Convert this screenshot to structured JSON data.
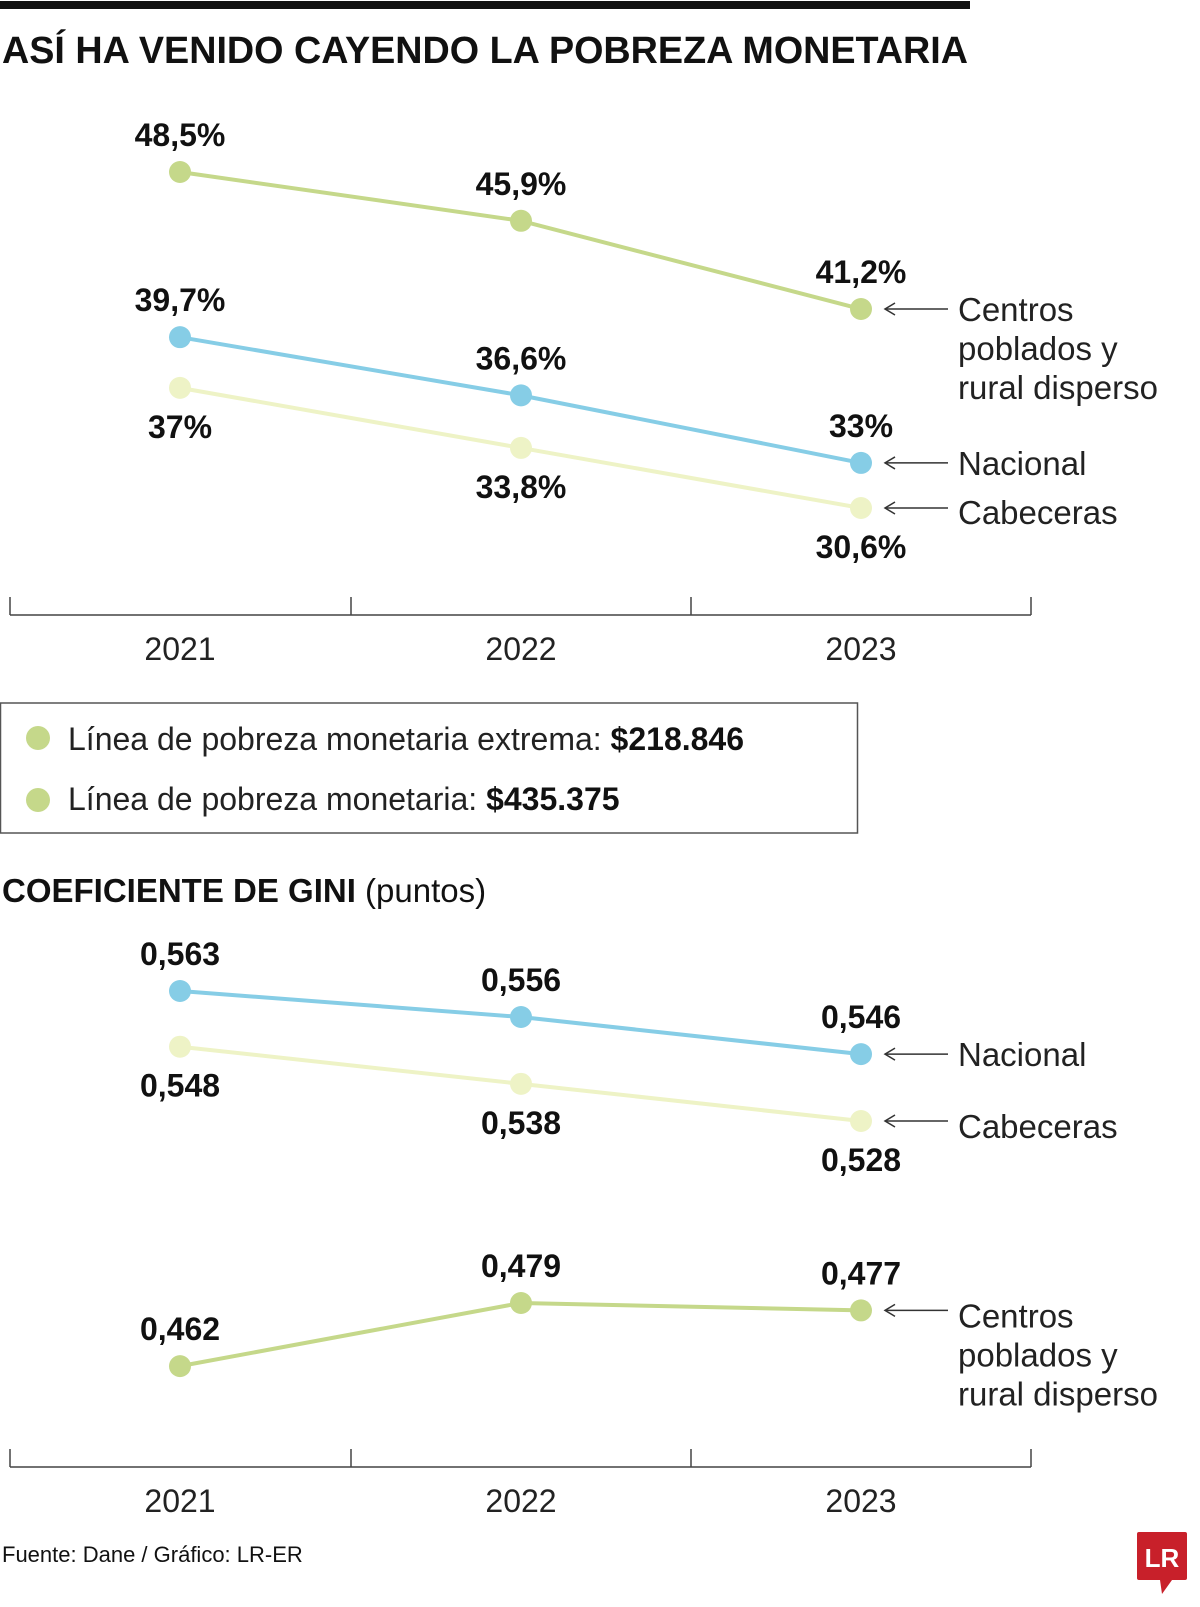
{
  "title": "ASÍ HA VENIDO CAYENDO LA POBREZA MONETARIA",
  "legend": [
    {
      "label": "Línea de pobreza monetaria extrema: ",
      "value": "$218.846",
      "color": "#c5d88a"
    },
    {
      "label": "Línea de pobreza monetaria: ",
      "value": "$435.375",
      "color": "#c5d88a"
    }
  ],
  "gini_title": {
    "bold": "COEFICIENTE DE GINI",
    "regular": " (puntos)"
  },
  "source": "Fuente: Dane / Gráfico: LR-ER",
  "logo": "LR",
  "chart_data": [
    {
      "type": "line",
      "title": "ASÍ HA VENIDO CAYENDO LA POBREZA MONETARIA",
      "x": [
        "2021",
        "2022",
        "2023"
      ],
      "unit": "%",
      "series": [
        {
          "name": [
            "Centros",
            "poblados y",
            "rural disperso"
          ],
          "values": [
            48.5,
            45.9,
            41.2
          ],
          "labels": [
            "48,5%",
            "45,9%",
            "41,2%"
          ],
          "color": "#c5d88a"
        },
        {
          "name": [
            "Nacional"
          ],
          "values": [
            39.7,
            36.6,
            33.0
          ],
          "labels": [
            "39,7%",
            "36,6%",
            "33%"
          ],
          "color": "#86cde6"
        },
        {
          "name": [
            "Cabeceras"
          ],
          "values": [
            37.0,
            33.8,
            30.6
          ],
          "labels": [
            "37%",
            "33,8%",
            "30,6%"
          ],
          "color": "#eef3c6"
        }
      ]
    },
    {
      "type": "line",
      "title": "COEFICIENTE DE GINI (puntos)",
      "x": [
        "2021",
        "2022",
        "2023"
      ],
      "series": [
        {
          "name": [
            "Nacional"
          ],
          "values": [
            0.563,
            0.556,
            0.546
          ],
          "labels": [
            "0,563",
            "0,556",
            "0,546"
          ],
          "color": "#86cde6"
        },
        {
          "name": [
            "Cabeceras"
          ],
          "values": [
            0.548,
            0.538,
            0.528
          ],
          "labels": [
            "0,548",
            "0,538",
            "0,528"
          ],
          "color": "#eef3c6"
        },
        {
          "name": [
            "Centros",
            "poblados y",
            "rural disperso"
          ],
          "values": [
            0.462,
            0.479,
            0.477
          ],
          "labels": [
            "0,462",
            "0,479",
            "0,477"
          ],
          "color": "#c5d88a"
        }
      ]
    }
  ]
}
